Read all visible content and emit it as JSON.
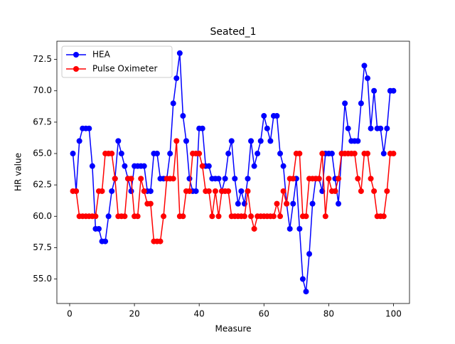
{
  "chart_data": {
    "type": "line",
    "title": "Seated_1",
    "x_label": "Measure",
    "y_label": "HR value",
    "x": [
      1,
      2,
      3,
      4,
      5,
      6,
      7,
      8,
      9,
      10,
      11,
      12,
      13,
      14,
      15,
      16,
      17,
      18,
      19,
      20,
      21,
      22,
      23,
      24,
      25,
      26,
      27,
      28,
      29,
      30,
      31,
      32,
      33,
      34,
      35,
      36,
      37,
      38,
      39,
      40,
      41,
      42,
      43,
      44,
      45,
      46,
      47,
      48,
      49,
      50,
      51,
      52,
      53,
      54,
      55,
      56,
      57,
      58,
      59,
      60,
      61,
      62,
      63,
      64,
      65,
      66,
      67,
      68,
      69,
      70,
      71,
      72,
      73,
      74,
      75,
      76,
      77,
      78,
      79,
      80,
      81,
      82,
      83,
      84,
      85,
      86,
      87,
      88,
      89,
      90,
      91,
      92,
      93,
      94,
      95,
      96,
      97,
      98,
      99,
      100
    ],
    "series": [
      {
        "name": "HEA",
        "color": "#0000ff",
        "values": [
          65,
          62,
          66,
          67,
          67,
          67,
          64,
          59,
          59,
          58,
          58,
          60,
          62,
          63,
          66,
          65,
          64,
          63,
          62,
          64,
          64,
          64,
          64,
          62,
          62,
          65,
          65,
          63,
          63,
          63,
          65,
          69,
          71,
          73,
          68,
          66,
          63,
          62,
          62,
          67,
          67,
          64,
          64,
          63,
          63,
          63,
          62,
          63,
          65,
          66,
          63,
          61,
          62,
          61,
          63,
          66,
          64,
          65,
          66,
          68,
          67,
          66,
          68,
          68,
          65,
          64,
          61,
          59,
          61,
          63,
          59,
          55,
          54,
          57,
          61,
          63,
          63,
          62,
          65,
          65,
          65,
          63,
          61,
          65,
          69,
          67,
          66,
          66,
          66,
          69,
          72,
          71,
          67,
          70,
          67,
          67,
          65,
          67,
          70,
          70
        ]
      },
      {
        "name": "Pulse Oximeter",
        "color": "#ff0000",
        "values": [
          62,
          62,
          60,
          60,
          60,
          60,
          60,
          60,
          62,
          62,
          65,
          65,
          65,
          63,
          60,
          60,
          60,
          63,
          63,
          60,
          60,
          63,
          62,
          61,
          61,
          58,
          58,
          58,
          60,
          63,
          63,
          63,
          66,
          60,
          60,
          62,
          62,
          65,
          65,
          65,
          64,
          62,
          62,
          60,
          62,
          60,
          62,
          62,
          62,
          60,
          60,
          60,
          60,
          60,
          62,
          60,
          59,
          60,
          60,
          60,
          60,
          60,
          60,
          61,
          60,
          62,
          61,
          63,
          63,
          65,
          65,
          60,
          60,
          63,
          63,
          63,
          63,
          65,
          60,
          63,
          62,
          62,
          63,
          65,
          65,
          65,
          65,
          65,
          63,
          62,
          65,
          65,
          63,
          62,
          60,
          60,
          60,
          62,
          65,
          65
        ]
      }
    ],
    "xlim": [
      -3.95,
      104.95
    ],
    "xticks": [
      0,
      20,
      40,
      60,
      80,
      100
    ],
    "ylim": [
      53.05,
      73.95
    ],
    "yticks": [
      {
        "value": 55,
        "label": "55.0"
      },
      {
        "value": 57.5,
        "label": "57.5"
      },
      {
        "value": 60,
        "label": "60.0"
      },
      {
        "value": 62.5,
        "label": "62.5"
      },
      {
        "value": 65,
        "label": "65.0"
      },
      {
        "value": 67.5,
        "label": "67.5"
      },
      {
        "value": 70,
        "label": "70.0"
      },
      {
        "value": 72.5,
        "label": "72.5"
      }
    ],
    "legend": "upper left",
    "grid": false
  }
}
